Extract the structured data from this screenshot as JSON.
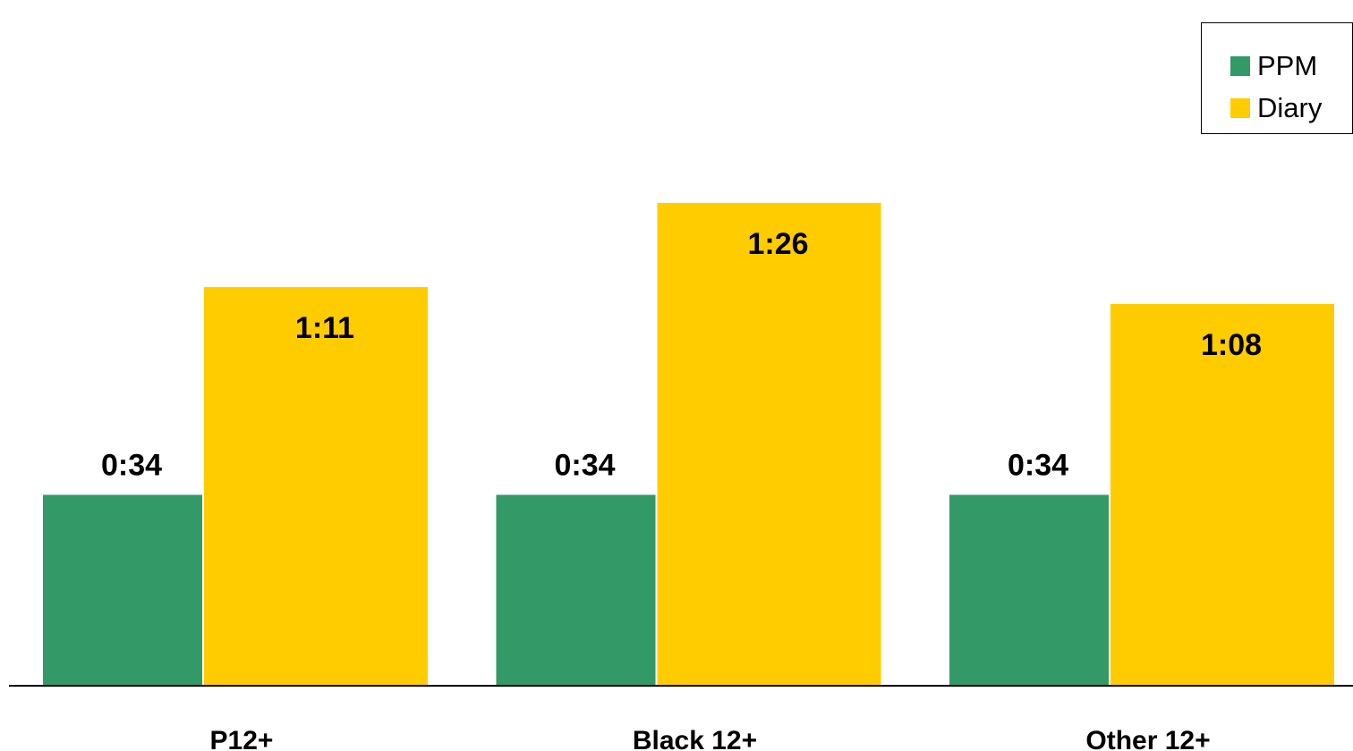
{
  "chart_data": {
    "type": "bar",
    "categories": [
      "P12+",
      "Black 12+",
      "Other 12+"
    ],
    "series": [
      {
        "name": "PPM",
        "values": [
          "0:34",
          "0:34",
          "0:34"
        ],
        "color": "#339966"
      },
      {
        "name": "Diary",
        "values": [
          "1:11",
          "1:26",
          "1:08"
        ],
        "color": "#FFCC00"
      }
    ],
    "value_format": "h:mm",
    "title": "",
    "xlabel": "",
    "ylabel": "",
    "grid": false,
    "legend_position": "top-right"
  }
}
